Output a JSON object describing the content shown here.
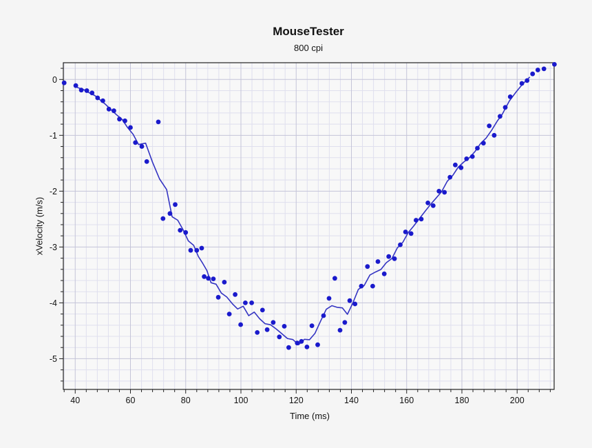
{
  "window": {
    "background": "#f5f5f5"
  },
  "chart_data": {
    "type": "scatter",
    "title": "MouseTester",
    "subtitle": "800 cpi",
    "xlabel": "Time (ms)",
    "ylabel": "xVelocity (m/s)",
    "xlim": [
      35.7,
      213.4
    ],
    "ylim": [
      -5.55,
      0.3
    ],
    "x_major_ticks": [
      40,
      60,
      80,
      100,
      120,
      140,
      160,
      180,
      200
    ],
    "x_minor_interval": 4,
    "y_major_ticks": [
      0,
      -1,
      -2,
      -3,
      -4,
      -5
    ],
    "y_minor_interval": 0.2,
    "grid": "minor+major",
    "legend": "none",
    "colors": {
      "point": "#1a1acc",
      "trend": "#3333c2",
      "grid_minor": "#dfdfee",
      "grid_major": "#c4c4d8",
      "plot_bg": "#f8f8f8",
      "frame": "#222222",
      "text": "#111111"
    },
    "series": [
      {
        "name": "xVelocity",
        "marker": "circle",
        "points": [
          [
            36.0,
            -0.06
          ],
          [
            40.2,
            -0.11
          ],
          [
            42.2,
            -0.19
          ],
          [
            44.2,
            -0.2
          ],
          [
            46.1,
            -0.24
          ],
          [
            48.1,
            -0.33
          ],
          [
            50.0,
            -0.38
          ],
          [
            52.2,
            -0.53
          ],
          [
            54.0,
            -0.56
          ],
          [
            56.0,
            -0.71
          ],
          [
            58.0,
            -0.74
          ],
          [
            60.0,
            -0.86
          ],
          [
            61.8,
            -1.13
          ],
          [
            64.1,
            -1.2
          ],
          [
            65.9,
            -1.47
          ],
          [
            70.1,
            -0.76
          ],
          [
            71.8,
            -2.49
          ],
          [
            74.3,
            -2.4
          ],
          [
            76.2,
            -2.24
          ],
          [
            78.0,
            -2.7
          ],
          [
            80.0,
            -2.74
          ],
          [
            81.8,
            -3.06
          ],
          [
            84.0,
            -3.06
          ],
          [
            85.8,
            -3.02
          ],
          [
            86.7,
            -3.53
          ],
          [
            88.2,
            -3.56
          ],
          [
            90.0,
            -3.57
          ],
          [
            91.8,
            -3.9
          ],
          [
            94.0,
            -3.63
          ],
          [
            95.8,
            -4.2
          ],
          [
            97.9,
            -3.85
          ],
          [
            99.9,
            -4.39
          ],
          [
            101.6,
            -4.0
          ],
          [
            103.9,
            -4.0
          ],
          [
            105.9,
            -4.53
          ],
          [
            107.8,
            -4.13
          ],
          [
            109.5,
            -4.48
          ],
          [
            111.7,
            -4.35
          ],
          [
            113.9,
            -4.61
          ],
          [
            115.7,
            -4.42
          ],
          [
            117.3,
            -4.8
          ],
          [
            120.4,
            -4.72
          ],
          [
            121.9,
            -4.69
          ],
          [
            123.9,
            -4.79
          ],
          [
            125.7,
            -4.41
          ],
          [
            127.8,
            -4.75
          ],
          [
            129.9,
            -4.23
          ],
          [
            131.9,
            -3.92
          ],
          [
            134.0,
            -3.56
          ],
          [
            135.9,
            -4.49
          ],
          [
            137.6,
            -4.35
          ],
          [
            139.4,
            -3.96
          ],
          [
            141.3,
            -4.02
          ],
          [
            143.6,
            -3.7
          ],
          [
            145.8,
            -3.35
          ],
          [
            147.7,
            -3.7
          ],
          [
            149.6,
            -3.26
          ],
          [
            151.9,
            -3.48
          ],
          [
            153.5,
            -3.17
          ],
          [
            155.6,
            -3.21
          ],
          [
            157.7,
            -2.96
          ],
          [
            159.6,
            -2.73
          ],
          [
            161.6,
            -2.76
          ],
          [
            163.4,
            -2.52
          ],
          [
            165.3,
            -2.5
          ],
          [
            167.7,
            -2.21
          ],
          [
            169.6,
            -2.26
          ],
          [
            171.7,
            -2.0
          ],
          [
            173.7,
            -2.02
          ],
          [
            175.7,
            -1.75
          ],
          [
            177.6,
            -1.53
          ],
          [
            179.7,
            -1.58
          ],
          [
            181.7,
            -1.42
          ],
          [
            183.8,
            -1.38
          ],
          [
            185.6,
            -1.23
          ],
          [
            187.8,
            -1.14
          ],
          [
            189.9,
            -0.83
          ],
          [
            191.7,
            -1.0
          ],
          [
            193.8,
            -0.66
          ],
          [
            195.7,
            -0.5
          ],
          [
            197.5,
            -0.31
          ],
          [
            201.7,
            -0.07
          ],
          [
            203.6,
            -0.02
          ],
          [
            205.6,
            0.1
          ],
          [
            207.5,
            0.17
          ],
          [
            209.7,
            0.19
          ],
          [
            213.5,
            0.27
          ]
        ]
      }
    ],
    "trend_line": {
      "type": "moving_average",
      "window": 4
    }
  }
}
